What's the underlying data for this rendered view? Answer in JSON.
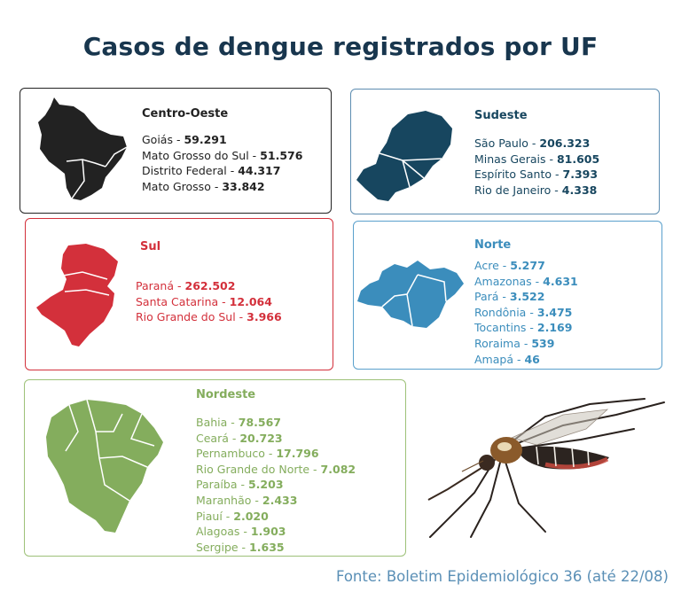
{
  "title": "Casos de dengue registrados por UF",
  "colors": {
    "centro_oeste": "#222222",
    "sudeste": "#17465f",
    "sul": "#d3303b",
    "norte": "#3b8dbc",
    "nordeste": "#84ad5d",
    "title": "#18364e"
  },
  "regions": {
    "centro_oeste": {
      "name": "Centro-Oeste",
      "items": [
        {
          "state": "Goiás",
          "value": "59.291"
        },
        {
          "state": "Mato Grosso do Sul",
          "value": "51.576"
        },
        {
          "state": "Distrito Federal",
          "value": "44.317"
        },
        {
          "state": "Mato Grosso",
          "value": "33.842"
        }
      ]
    },
    "sudeste": {
      "name": "Sudeste",
      "items": [
        {
          "state": "São Paulo",
          "value": "206.323"
        },
        {
          "state": "Minas Gerais",
          "value": "81.605"
        },
        {
          "state": "Espírito Santo",
          "value": "7.393"
        },
        {
          "state": "Rio de Janeiro",
          "value": "4.338"
        }
      ]
    },
    "sul": {
      "name": "Sul",
      "items": [
        {
          "state": "Paraná",
          "value": "262.502"
        },
        {
          "state": "Santa Catarina",
          "value": "12.064"
        },
        {
          "state": "Rio Grande do Sul",
          "value": "3.966"
        }
      ]
    },
    "norte": {
      "name": "Norte",
      "items": [
        {
          "state": "Acre",
          "value": "5.277"
        },
        {
          "state": "Amazonas",
          "value": "4.631"
        },
        {
          "state": "Pará",
          "value": "3.522"
        },
        {
          "state": "Rondônia",
          "value": "3.475"
        },
        {
          "state": "Tocantins",
          "value": "2.169"
        },
        {
          "state": "Roraima",
          "value": "539"
        },
        {
          "state": "Amapá",
          "value": "46"
        }
      ]
    },
    "nordeste": {
      "name": "Nordeste",
      "items": [
        {
          "state": "Bahia",
          "value": "78.567"
        },
        {
          "state": "Ceará",
          "value": "20.723"
        },
        {
          "state": "Pernambuco",
          "value": "17.796"
        },
        {
          "state": "Rio Grande do Norte",
          "value": "7.082"
        },
        {
          "state": "Paraíba",
          "value": "5.203"
        },
        {
          "state": "Maranhão",
          "value": "2.433"
        },
        {
          "state": "Piauí",
          "value": "2.020"
        },
        {
          "state": "Alagoas",
          "value": "1.903"
        },
        {
          "state": "Sergipe",
          "value": "1.635"
        }
      ]
    }
  },
  "source": "Fonte: Boletim Epidemiológico 36 (até 22/08)",
  "icons": {
    "mosquito": "mosquito-icon"
  }
}
